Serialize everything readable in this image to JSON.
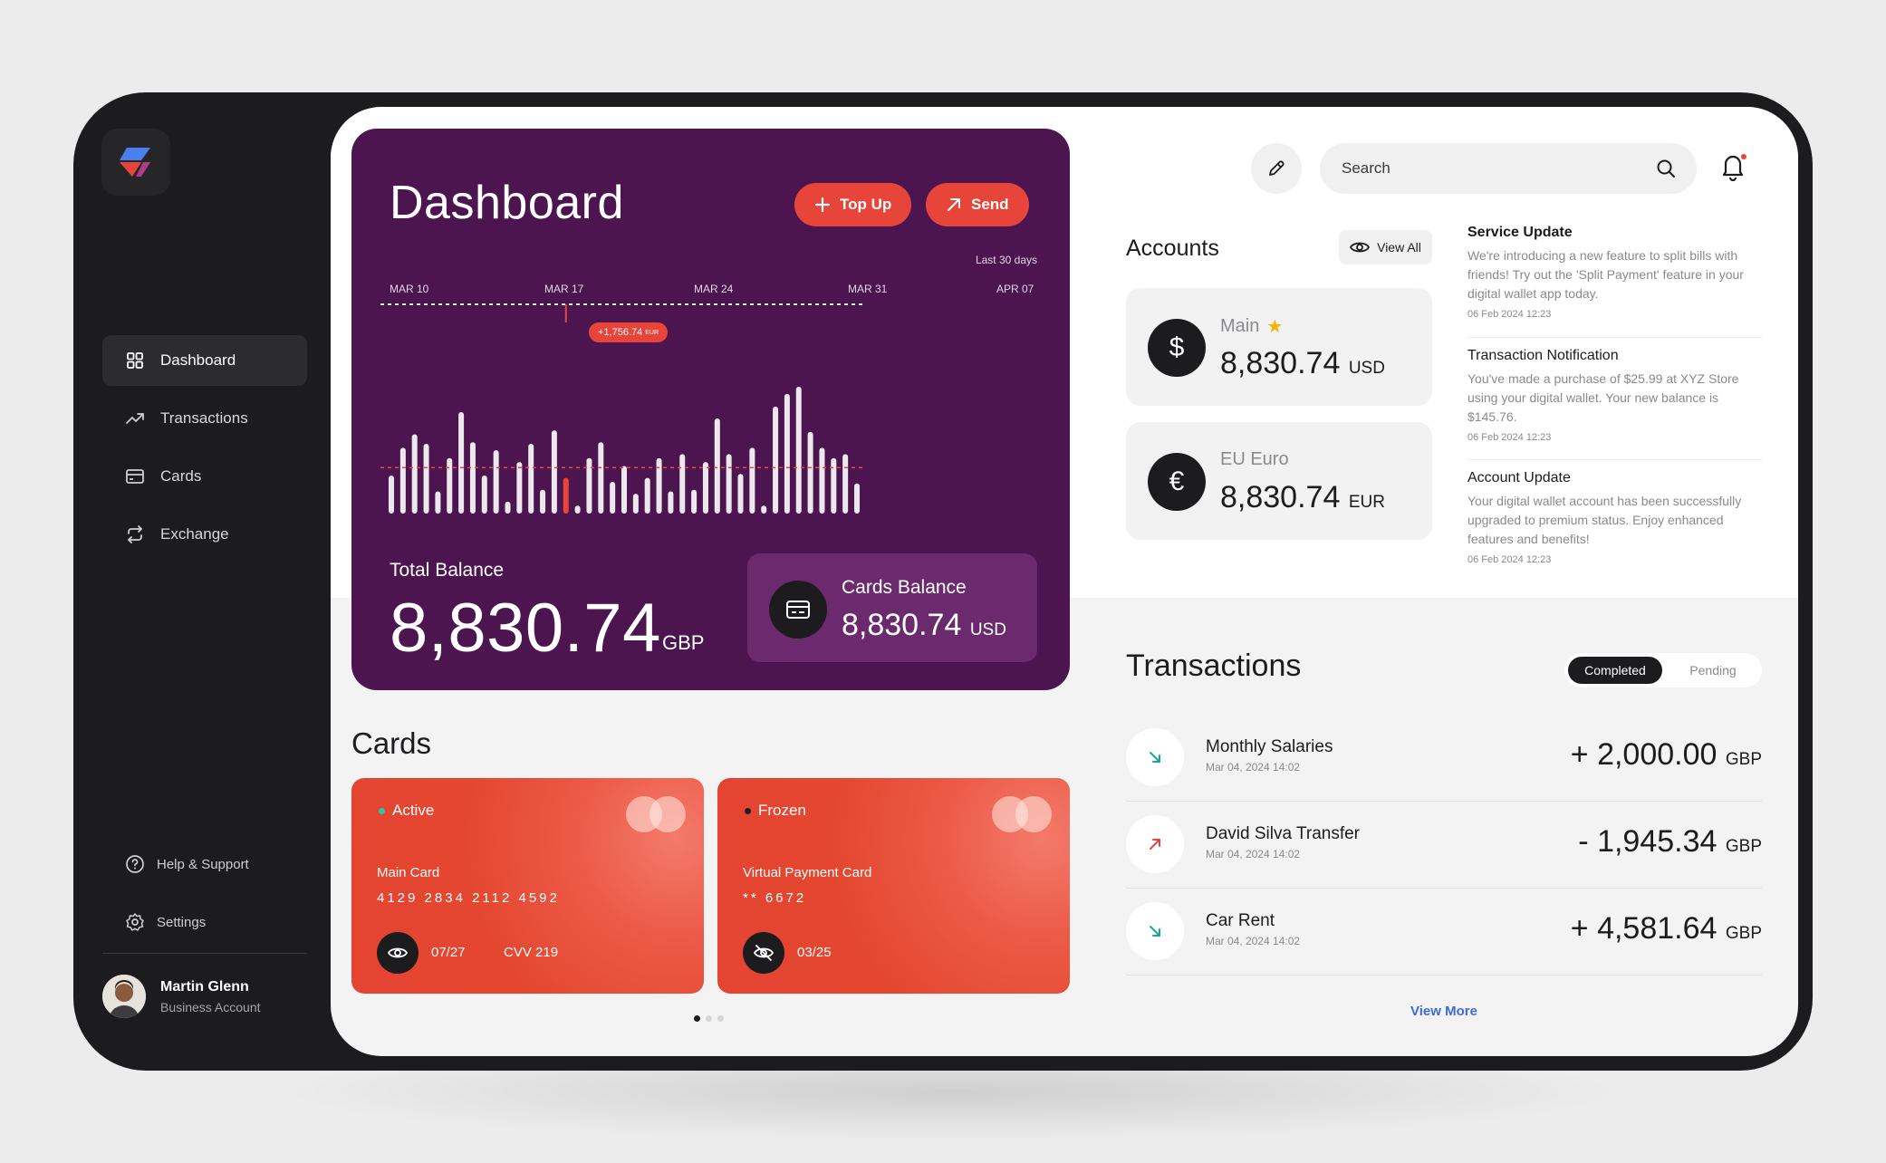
{
  "sidebar": {
    "nav": [
      {
        "label": "Dashboard",
        "icon": "grid-icon",
        "active": true
      },
      {
        "label": "Transactions",
        "icon": "trend-up-icon",
        "active": false
      },
      {
        "label": "Cards",
        "icon": "card-icon",
        "active": false
      },
      {
        "label": "Exchange",
        "icon": "exchange-icon",
        "active": false
      }
    ],
    "help_label": "Help & Support",
    "settings_label": "Settings",
    "user": {
      "name": "Martin Glenn",
      "role": "Business Account"
    }
  },
  "dashboard": {
    "title": "Dashboard",
    "topup_label": "Top Up",
    "send_label": "Send",
    "range_label": "Last 30 days",
    "tooltip_value": "+1,756.74",
    "tooltip_currency": "EUR",
    "total_balance_label": "Total Balance",
    "total_balance_value": "8,830.74",
    "total_balance_currency": "GBP",
    "cards_balance_label": "Cards Balance",
    "cards_balance_value": "8,830.74",
    "cards_balance_currency": "USD"
  },
  "chart_data": {
    "type": "bar",
    "x_ticks": [
      "MAR 10",
      "MAR 17",
      "MAR 24",
      "MAR 31",
      "APR 07"
    ],
    "values": [
      48,
      83,
      100,
      88,
      28,
      70,
      128,
      90,
      48,
      80,
      15,
      65,
      88,
      30,
      105,
      45,
      10,
      70,
      90,
      40,
      60,
      25,
      45,
      70,
      28,
      75,
      30,
      65,
      120,
      75,
      50,
      83,
      10,
      135,
      151,
      160,
      103,
      83,
      70,
      75,
      38
    ],
    "highlighted_index": 15,
    "average": 58,
    "accent_color": "#e8453a",
    "bar_color": "#ffffff"
  },
  "cards": {
    "title": "Cards",
    "items": [
      {
        "status": "Active",
        "status_color": "#2ec4a6",
        "type": "Main Card",
        "number": "4129 2834 2112 4592",
        "expiry": "07/27",
        "cvv": "CVV 219"
      },
      {
        "status": "Frozen",
        "status_color": "#1c1c1e",
        "type": "Virtual Payment Card",
        "number": "** 6672",
        "expiry": "03/25",
        "cvv": ""
      }
    ],
    "pager_count": 3,
    "pager_active": 0
  },
  "header": {
    "search_placeholder": "Search"
  },
  "accounts": {
    "title": "Accounts",
    "view_all_label": "View All",
    "items": [
      {
        "symbol": "$",
        "name": "Main",
        "favorite": true,
        "value": "8,830.74",
        "currency": "USD"
      },
      {
        "symbol": "€",
        "name": "EU Euro",
        "favorite": false,
        "value": "8,830.74",
        "currency": "EUR"
      }
    ]
  },
  "notifications": [
    {
      "title": "Service Update",
      "body": "We're introducing a new feature to split bills with friends! Try out the 'Split Payment' feature in your digital wallet app today.",
      "date": "06 Feb 2024 12:23"
    },
    {
      "title": "Transaction Notification",
      "body": "You've made a purchase of $25.99 at XYZ Store using your digital wallet. Your new balance is $145.76.",
      "date": "06 Feb 2024 12:23"
    },
    {
      "title": "Account Update",
      "body": "Your digital wallet account has been successfully upgraded to premium status. Enjoy enhanced features and benefits!",
      "date": "06 Feb 2024 12:23"
    }
  ],
  "transactions": {
    "title": "Transactions",
    "tab_completed": "Completed",
    "tab_pending": "Pending",
    "items": [
      {
        "name": "Monthly Salaries",
        "date": "Mar 04, 2024 14:02",
        "amount": "+ 2,000.00",
        "currency": "GBP",
        "direction": "in"
      },
      {
        "name": "David Silva Transfer",
        "date": "Mar 04, 2024 14:02",
        "amount": "- 1,945.34",
        "currency": "GBP",
        "direction": "out"
      },
      {
        "name": "Car Rent",
        "date": "Mar 04, 2024 14:02",
        "amount": "+ 4,581.64",
        "currency": "GBP",
        "direction": "in"
      }
    ],
    "view_more_label": "View More"
  }
}
